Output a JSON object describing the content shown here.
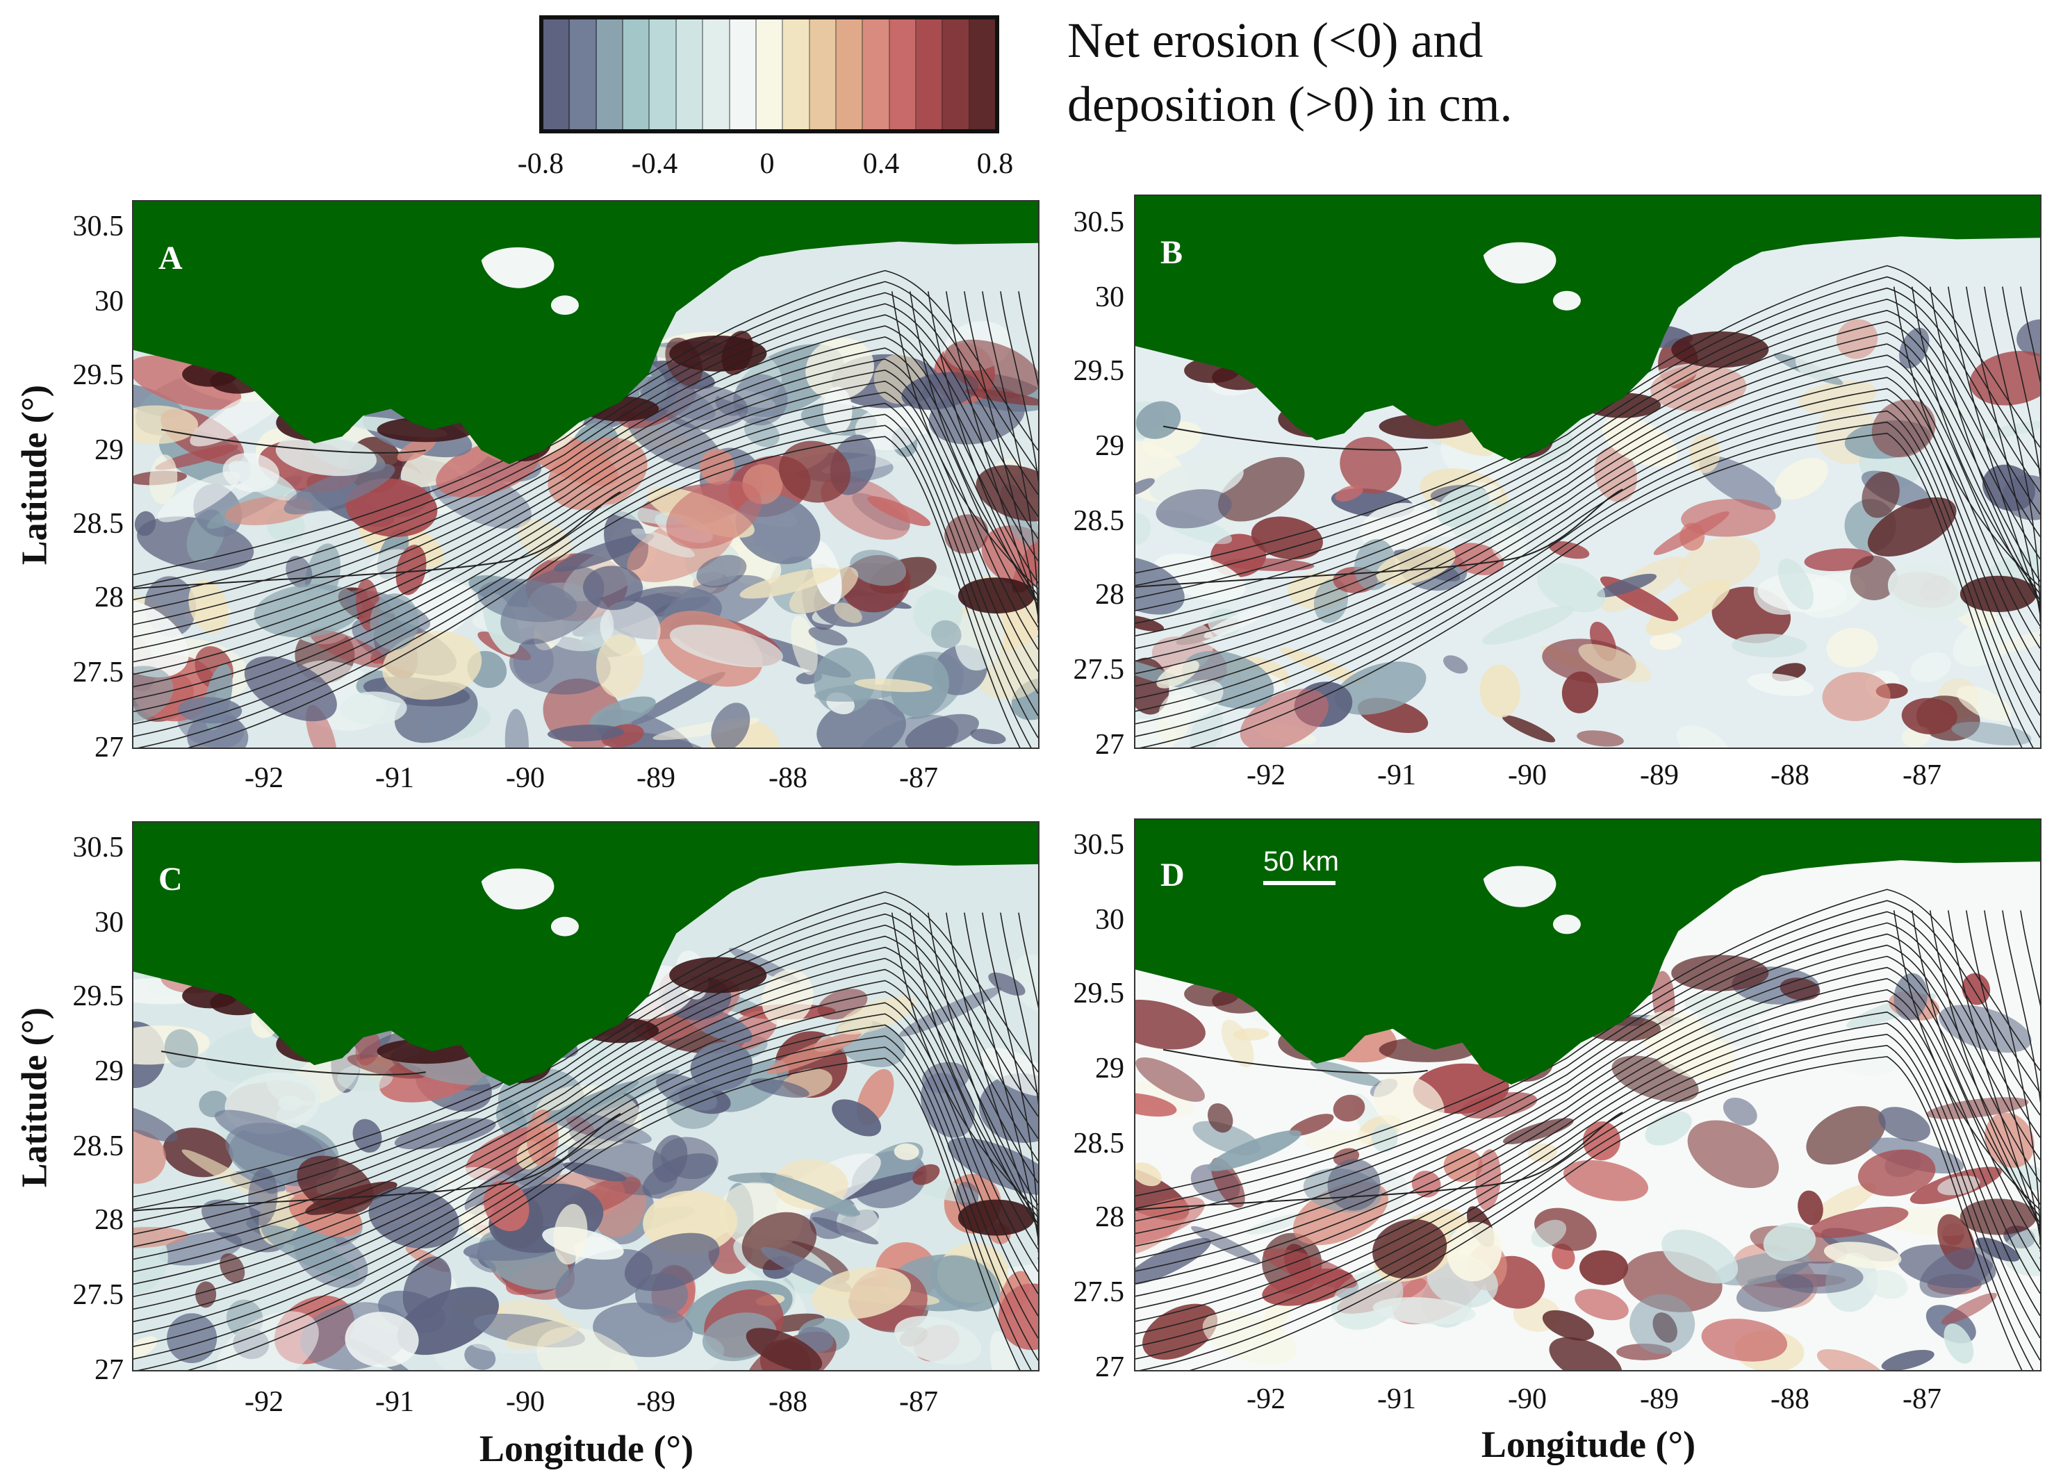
{
  "colorbar": {
    "title_line1": "Net erosion (<0) and",
    "title_line2": "deposition (>0) in cm.",
    "ticks": [
      "-0.8",
      "-0.4",
      "0",
      "0.4",
      "0.8"
    ],
    "range": [
      -0.8,
      0.8
    ],
    "colors": [
      "#5d6380",
      "#727d97",
      "#8aa3ae",
      "#a3c6c8",
      "#bcd9d9",
      "#d0e5e3",
      "#e2eeec",
      "#f2f7f5",
      "#f8f6e4",
      "#f1e4c0",
      "#e8c8a0",
      "#e0aa8a",
      "#d88b7e",
      "#c86a6a",
      "#a84c50",
      "#843a3c",
      "#5e2a2c"
    ]
  },
  "colors": {
    "land": "#006400",
    "water_base": "#e4eef0"
  },
  "axes": {
    "ylabel": "Latitude (°)",
    "xlabel": "Longitude (°)",
    "yticks": [
      "30.5",
      "30",
      "29.5",
      "29",
      "28.5",
      "28",
      "27.5",
      "27"
    ],
    "xticks": [
      "-92",
      "-91",
      "-90",
      "-89",
      "-88",
      "-87"
    ]
  },
  "panels": [
    {
      "label": "A"
    },
    {
      "label": "B"
    },
    {
      "label": "C"
    },
    {
      "label": "D",
      "scalebar": "50 km"
    }
  ]
}
